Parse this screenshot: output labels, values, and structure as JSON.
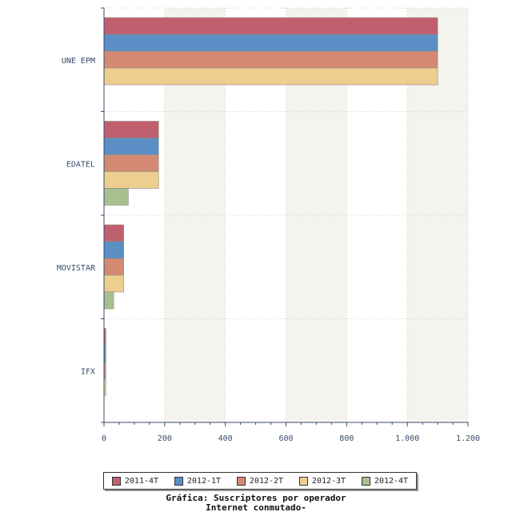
{
  "chart_data": {
    "type": "bar",
    "orientation": "horizontal",
    "categories": [
      "UNE EPM",
      "EDATEL",
      "MOVISTAR",
      "IFX"
    ],
    "series": [
      {
        "name": "2011-4T",
        "color": "#c0606e",
        "values": [
          1100,
          180,
          65,
          6
        ]
      },
      {
        "name": "2012-1T",
        "color": "#5b8ec4",
        "values": [
          1100,
          180,
          65,
          6
        ]
      },
      {
        "name": "2012-2T",
        "color": "#d48a72",
        "values": [
          1100,
          180,
          65,
          6
        ]
      },
      {
        "name": "2012-3T",
        "color": "#eece8e",
        "values": [
          1100,
          180,
          65,
          6
        ]
      },
      {
        "name": "2012-4T",
        "color": "#a8c090",
        "values": [
          null,
          80,
          32,
          null
        ]
      }
    ],
    "xlim": [
      0,
      1200
    ],
    "xticks": [
      0,
      200,
      400,
      600,
      800,
      1000,
      1200
    ],
    "xtick_labels": [
      "0",
      "200",
      "400",
      "600",
      "800",
      "1.000",
      "1.200"
    ],
    "grid": true,
    "legend_position": "bottom",
    "caption_line1": "Gráfica: Suscriptores por operador",
    "caption_line2": "Internet conmutado-"
  }
}
